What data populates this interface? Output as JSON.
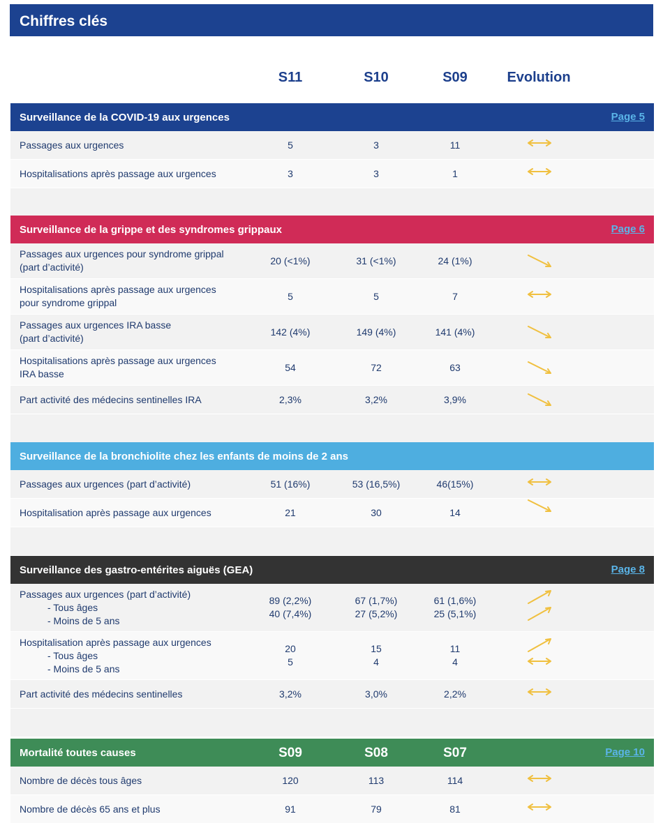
{
  "title": "Chiffres clés",
  "columns": [
    "S11",
    "S10",
    "S09",
    "Evolution"
  ],
  "colors": {
    "arrow": "#f0c040"
  },
  "sections": [
    {
      "title": "Surveillance de la COVID-19 aux urgences",
      "link": "Page 5",
      "color": "#1c4290",
      "rows": [
        {
          "label": [
            "Passages aux urgences"
          ],
          "values": [
            [
              "5"
            ],
            [
              "3"
            ],
            [
              "11"
            ]
          ],
          "trend": [
            "stable"
          ],
          "h": 40
        },
        {
          "label": [
            "Hospitalisations après passage aux urgences"
          ],
          "values": [
            [
              "3"
            ],
            [
              "3"
            ],
            [
              "1"
            ]
          ],
          "trend": [
            "stable"
          ],
          "h": 40
        }
      ]
    },
    {
      "title": "Surveillance de la grippe et des syndromes grippaux",
      "link": "Page 6",
      "color": "#d02b57",
      "rows": [
        {
          "label": [
            "Passages aux urgences pour syndrome grippal",
            "(part d’activité)"
          ],
          "values": [
            [
              "20 (<1%)"
            ],
            [
              "31 (<1%)"
            ],
            [
              "24 (1%)"
            ]
          ],
          "trend": [
            "down"
          ],
          "h": 50
        },
        {
          "label": [
            "Hospitalisations après passage aux urgences",
            "pour syndrome grippal"
          ],
          "values": [
            [
              "5"
            ],
            [
              "5"
            ],
            [
              "7"
            ]
          ],
          "trend": [
            "stable"
          ],
          "h": 50
        },
        {
          "label": [
            "Passages aux urgences IRA basse",
            "(part d’activité)"
          ],
          "values": [
            [
              "142 (4%)"
            ],
            [
              "149 (4%)"
            ],
            [
              "141 (4%)"
            ]
          ],
          "trend": [
            "down"
          ],
          "h": 50
        },
        {
          "label": [
            "Hospitalisations après passage aux urgences",
            "IRA basse"
          ],
          "values": [
            [
              "54"
            ],
            [
              "72"
            ],
            [
              "63"
            ]
          ],
          "trend": [
            "down"
          ],
          "h": 50
        },
        {
          "label": [
            "Part activité des médecins sentinelles IRA"
          ],
          "values": [
            [
              "2,3%"
            ],
            [
              "3,2%"
            ],
            [
              "3,9%"
            ]
          ],
          "trend": [
            "down"
          ],
          "h": 40
        }
      ]
    },
    {
      "title": "Surveillance de la bronchiolite chez les enfants de moins de 2 ans",
      "link": "",
      "color": "#4eaee0",
      "rows": [
        {
          "label": [
            "Passages aux urgences (part d’activité)"
          ],
          "values": [
            [
              "51 (16%)"
            ],
            [
              "53 (16,5%)"
            ],
            [
              "46(15%)"
            ]
          ],
          "trend": [
            "stable"
          ],
          "h": 40
        },
        {
          "label": [
            "Hospitalisation après passage aux urgences"
          ],
          "values": [
            [
              "21"
            ],
            [
              "30"
            ],
            [
              "14"
            ]
          ],
          "trend": [
            "down"
          ],
          "h": 40
        }
      ]
    },
    {
      "title": "Surveillance des gastro-entérites aiguës (GEA)",
      "link": "Page 8",
      "color": "#333333",
      "rows": [
        {
          "label": [
            "Passages aux urgences (part d’activité)",
            "-   Tous âges",
            "-   Moins de 5 ans"
          ],
          "values": [
            [
              "89 (2,2%)",
              "40 (7,4%)"
            ],
            [
              "67 (1,7%)",
              "27 (5,2%)"
            ],
            [
              "61 (1,6%)",
              "25 (5,1%)"
            ]
          ],
          "trend": [
            "up",
            "up"
          ],
          "h": 68
        },
        {
          "label": [
            "Hospitalisation après passage aux urgences",
            "-   Tous âges",
            "-   Moins de 5 ans"
          ],
          "values": [
            [
              "20",
              "5"
            ],
            [
              "15",
              "4"
            ],
            [
              "11",
              "4"
            ]
          ],
          "trend": [
            "up",
            "stable"
          ],
          "h": 68
        },
        {
          "label": [
            "Part activité des médecins sentinelles"
          ],
          "values": [
            [
              "3,2%"
            ],
            [
              "3,0%"
            ],
            [
              "2,2%"
            ]
          ],
          "trend": [
            "stable"
          ],
          "h": 40
        }
      ]
    },
    {
      "title": "Mortalité toutes causes",
      "link": "Page 10",
      "color": "#3e8c57",
      "columns": [
        "S09",
        "S08",
        "S07"
      ],
      "rows": [
        {
          "label": [
            "Nombre de décès tous âges"
          ],
          "values": [
            [
              "120"
            ],
            [
              "113"
            ],
            [
              "114"
            ]
          ],
          "trend": [
            "stable"
          ],
          "h": 40
        },
        {
          "label": [
            "Nombre de décès 65 ans et plus"
          ],
          "values": [
            [
              "91"
            ],
            [
              "79"
            ],
            [
              "81"
            ]
          ],
          "trend": [
            "stable"
          ],
          "h": 40
        }
      ],
      "nospacer": true
    }
  ]
}
